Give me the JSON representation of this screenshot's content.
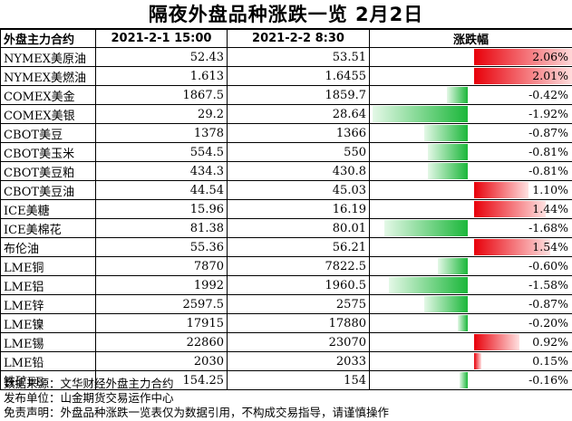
{
  "title": "隔夜外盘品种涨跌一览 2月2日",
  "headers": [
    "外盘主力合约",
    "2021-2-1 15:00",
    "2021-2-2 8:30",
    "涨跌幅"
  ],
  "colors": {
    "up": "#e8000a",
    "down": "#1bb73a"
  },
  "chart_data": {
    "type": "table",
    "rows": [
      {
        "name": "NYMEX美原油",
        "prev": "52.43",
        "curr": "53.51",
        "pct_label": "2.06%",
        "change": 2.06
      },
      {
        "name": "NYMEX美燃油",
        "prev": "1.613",
        "curr": "1.6455",
        "pct_label": "2.01%",
        "change": 2.01
      },
      {
        "name": "COMEX美金",
        "prev": "1867.5",
        "curr": "1859.7",
        "pct_label": "-0.42%",
        "change": -0.42
      },
      {
        "name": "COMEX美银",
        "prev": "29.2",
        "curr": "28.64",
        "pct_label": "-1.92%",
        "change": -1.92
      },
      {
        "name": "CBOT美豆",
        "prev": "1378",
        "curr": "1366",
        "pct_label": "-0.87%",
        "change": -0.87
      },
      {
        "name": "CBOT美玉米",
        "prev": "554.5",
        "curr": "550",
        "pct_label": "-0.81%",
        "change": -0.81
      },
      {
        "name": "CBOT美豆粕",
        "prev": "434.3",
        "curr": "430.8",
        "pct_label": "-0.81%",
        "change": -0.81
      },
      {
        "name": "CBOT美豆油",
        "prev": "44.54",
        "curr": "45.03",
        "pct_label": "1.10%",
        "change": 1.1
      },
      {
        "name": "ICE美糖",
        "prev": "15.96",
        "curr": "16.19",
        "pct_label": "1.44%",
        "change": 1.44
      },
      {
        "name": "ICE美棉花",
        "prev": "81.38",
        "curr": "80.01",
        "pct_label": "-1.68%",
        "change": -1.68
      },
      {
        "name": "布伦油",
        "prev": "55.36",
        "curr": "56.21",
        "pct_label": "1.54%",
        "change": 1.54
      },
      {
        "name": "LME铜",
        "prev": "7870",
        "curr": "7822.5",
        "pct_label": "-0.60%",
        "change": -0.6
      },
      {
        "name": "LME铝",
        "prev": "1992",
        "curr": "1960.5",
        "pct_label": "-1.58%",
        "change": -1.58
      },
      {
        "name": "LME锌",
        "prev": "2597.5",
        "curr": "2575",
        "pct_label": "-0.87%",
        "change": -0.87
      },
      {
        "name": "LME镍",
        "prev": "17915",
        "curr": "17880",
        "pct_label": "-0.20%",
        "change": -0.2
      },
      {
        "name": "LME锡",
        "prev": "22860",
        "curr": "23070",
        "pct_label": "0.92%",
        "change": 0.92
      },
      {
        "name": "LME铅",
        "prev": "2030",
        "curr": "2033",
        "pct_label": "0.15%",
        "change": 0.15
      },
      {
        "name": "铁矿FE",
        "prev": "154.25",
        "curr": "154",
        "pct_label": "-0.16%",
        "change": -0.16
      }
    ]
  },
  "footer": {
    "source": "数据来源：文华财经外盘主力合约",
    "publisher": "发布单位：山金期货交易运作中心",
    "disclaimer": "免责声明：外盘品种涨跌一览表仅为数据引用，不构成交易指导，请谨慎操作"
  }
}
